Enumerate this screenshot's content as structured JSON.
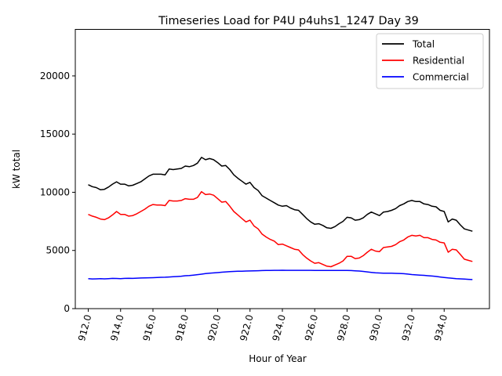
{
  "chart_data": {
    "type": "line",
    "title": "Timeseries Load for P4U p4uhs1_1247  Day 39",
    "xlabel": "Hour of Year",
    "ylabel": "kW total",
    "xlim": [
      911.2,
      936.8
    ],
    "ylim": [
      0,
      24000
    ],
    "xticks": [
      912,
      914,
      916,
      918,
      920,
      922,
      924,
      926,
      928,
      930,
      932,
      934
    ],
    "xtick_labels": [
      "912.0",
      "914.0",
      "916.0",
      "918.0",
      "920.0",
      "922.0",
      "924.0",
      "926.0",
      "928.0",
      "930.0",
      "932.0",
      "934.0"
    ],
    "yticks": [
      0,
      5000,
      10000,
      15000,
      20000
    ],
    "ytick_labels": [
      "0",
      "5000",
      "10000",
      "15000",
      "20000"
    ],
    "legend_position": "top-right",
    "x": [
      912.0,
      912.25,
      912.5,
      912.75,
      913.0,
      913.25,
      913.5,
      913.75,
      914.0,
      914.25,
      914.5,
      914.75,
      915.0,
      915.25,
      915.5,
      915.75,
      916.0,
      916.25,
      916.5,
      916.75,
      917.0,
      917.25,
      917.5,
      917.75,
      918.0,
      918.25,
      918.5,
      918.75,
      919.0,
      919.25,
      919.5,
      919.75,
      920.0,
      920.25,
      920.5,
      920.75,
      921.0,
      921.25,
      921.5,
      921.75,
      922.0,
      922.25,
      922.5,
      922.75,
      923.0,
      923.25,
      923.5,
      923.75,
      924.0,
      924.25,
      924.5,
      924.75,
      925.0,
      925.25,
      925.5,
      925.75,
      926.0,
      926.25,
      926.5,
      926.75,
      927.0,
      927.25,
      927.5,
      927.75,
      928.0,
      928.25,
      928.5,
      928.75,
      929.0,
      929.25,
      929.5,
      929.75,
      930.0,
      930.25,
      930.5,
      930.75,
      931.0,
      931.25,
      931.5,
      931.75,
      932.0,
      932.25,
      932.5,
      932.75,
      933.0,
      933.25,
      933.5,
      933.75,
      934.0,
      934.25,
      934.5,
      934.75,
      935.0,
      935.25,
      935.5,
      935.75
    ],
    "series": [
      {
        "name": "Total",
        "color": "#000000",
        "values": [
          10650,
          10480,
          10400,
          10220,
          10250,
          10450,
          10700,
          10900,
          10700,
          10700,
          10550,
          10600,
          10750,
          10900,
          11150,
          11400,
          11550,
          11550,
          11550,
          11500,
          12000,
          11950,
          12000,
          12050,
          12250,
          12200,
          12300,
          12500,
          13000,
          12800,
          12900,
          12800,
          12550,
          12250,
          12300,
          11950,
          11500,
          11200,
          10950,
          10700,
          10850,
          10400,
          10150,
          9700,
          9500,
          9300,
          9100,
          8900,
          8800,
          8850,
          8650,
          8500,
          8450,
          8100,
          7750,
          7450,
          7250,
          7300,
          7150,
          6950,
          6900,
          7050,
          7300,
          7500,
          7850,
          7800,
          7600,
          7650,
          7800,
          8100,
          8300,
          8150,
          8000,
          8300,
          8350,
          8450,
          8600,
          8850,
          9000,
          9200,
          9300,
          9200,
          9200,
          9000,
          8950,
          8800,
          8750,
          8450,
          8350,
          7450,
          7700,
          7600,
          7200,
          6850,
          6750,
          6650
        ]
      },
      {
        "name": "Residential",
        "color": "#ff0000",
        "values": [
          8100,
          7950,
          7850,
          7700,
          7650,
          7800,
          8050,
          8350,
          8100,
          8100,
          7950,
          8000,
          8150,
          8350,
          8550,
          8800,
          8950,
          8900,
          8900,
          8850,
          9300,
          9250,
          9250,
          9300,
          9450,
          9400,
          9400,
          9550,
          10050,
          9800,
          9850,
          9750,
          9450,
          9150,
          9200,
          8800,
          8350,
          8050,
          7750,
          7450,
          7600,
          7100,
          6850,
          6400,
          6150,
          5950,
          5800,
          5500,
          5550,
          5400,
          5250,
          5100,
          5050,
          4650,
          4350,
          4100,
          3900,
          3950,
          3800,
          3650,
          3600,
          3750,
          3900,
          4100,
          4500,
          4500,
          4300,
          4350,
          4550,
          4850,
          5100,
          4950,
          4900,
          5250,
          5300,
          5350,
          5500,
          5750,
          5900,
          6150,
          6300,
          6250,
          6300,
          6100,
          6100,
          5950,
          5900,
          5700,
          5650,
          4850,
          5100,
          5050,
          4650,
          4250,
          4150,
          4050
        ]
      },
      {
        "name": "Commercial",
        "color": "#0000ff",
        "values": [
          2580,
          2550,
          2560,
          2570,
          2560,
          2580,
          2600,
          2590,
          2580,
          2600,
          2610,
          2600,
          2620,
          2630,
          2640,
          2650,
          2660,
          2670,
          2690,
          2700,
          2720,
          2740,
          2760,
          2790,
          2830,
          2850,
          2880,
          2920,
          2960,
          3010,
          3050,
          3070,
          3100,
          3130,
          3160,
          3180,
          3200,
          3210,
          3220,
          3230,
          3240,
          3250,
          3260,
          3270,
          3280,
          3285,
          3290,
          3295,
          3300,
          3295,
          3295,
          3295,
          3295,
          3290,
          3290,
          3290,
          3285,
          3285,
          3280,
          3280,
          3280,
          3280,
          3280,
          3280,
          3280,
          3270,
          3250,
          3230,
          3200,
          3160,
          3120,
          3080,
          3060,
          3040,
          3040,
          3040,
          3030,
          3020,
          3000,
          2970,
          2930,
          2900,
          2880,
          2860,
          2830,
          2800,
          2770,
          2720,
          2680,
          2640,
          2610,
          2580,
          2560,
          2540,
          2520,
          2500
        ]
      }
    ]
  }
}
